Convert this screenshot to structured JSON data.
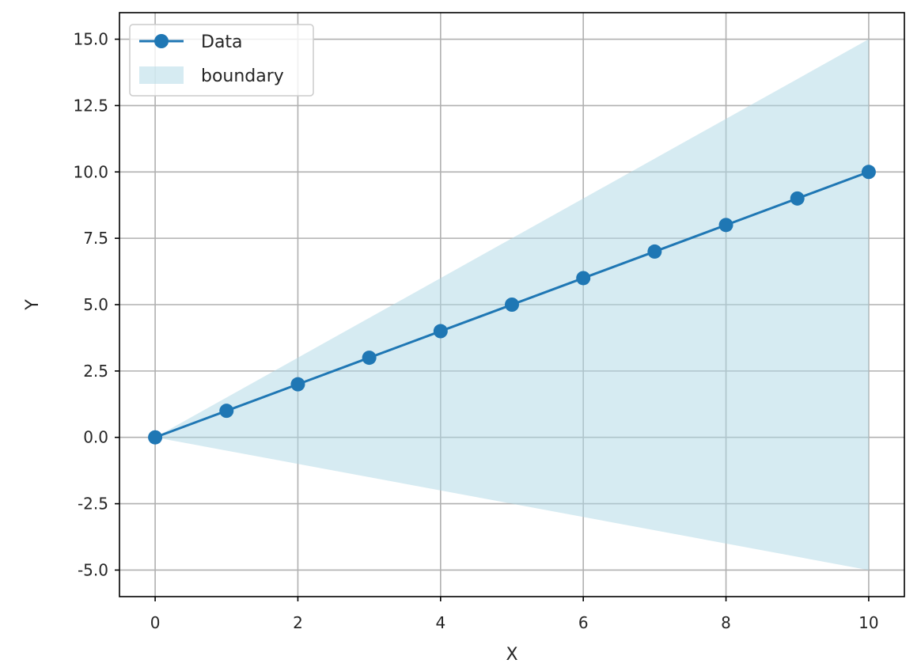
{
  "chart_data": {
    "type": "line",
    "title": "",
    "xlabel": "X",
    "ylabel": "Y",
    "xlim": [
      -0.5,
      10.5
    ],
    "ylim": [
      -6.0,
      16.0
    ],
    "xticks": [
      0,
      2,
      4,
      6,
      8,
      10
    ],
    "xtick_labels": [
      "0",
      "2",
      "4",
      "6",
      "8",
      "10"
    ],
    "yticks": [
      -5.0,
      -2.5,
      0.0,
      2.5,
      5.0,
      7.5,
      10.0,
      12.5,
      15.0
    ],
    "ytick_labels": [
      "-5.0",
      "-2.5",
      "0.0",
      "2.5",
      "5.0",
      "7.5",
      "10.0",
      "12.5",
      "15.0"
    ],
    "grid": true,
    "legend_position": "top-left",
    "series": [
      {
        "name": "Data",
        "kind": "line-markers",
        "color": "#1f77b4",
        "x": [
          0,
          1,
          2,
          3,
          4,
          5,
          6,
          7,
          8,
          9,
          10
        ],
        "y": [
          0,
          1,
          2,
          3,
          4,
          5,
          6,
          7,
          8,
          9,
          10
        ]
      }
    ],
    "band": {
      "name": "boundary",
      "kind": "fill-between",
      "color": "#add8e6",
      "opacity": 0.5,
      "x": [
        0,
        10
      ],
      "lower": [
        0,
        -5
      ],
      "upper": [
        0,
        15
      ]
    }
  }
}
